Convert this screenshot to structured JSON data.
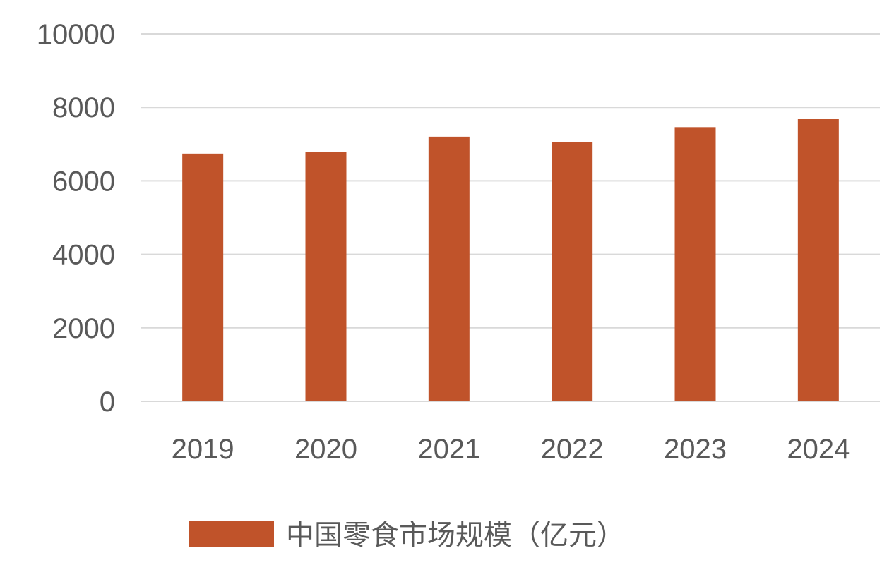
{
  "chart_data": {
    "type": "bar",
    "categories": [
      "2019",
      "2020",
      "2021",
      "2022",
      "2023",
      "2024"
    ],
    "series": [
      {
        "name": "中国零食市场规模（亿元）",
        "values": [
          6740,
          6780,
          7200,
          7060,
          7460,
          7690
        ],
        "color": "#c0532a"
      }
    ],
    "ylim": [
      0,
      10000
    ],
    "yticks": [
      0,
      2000,
      4000,
      6000,
      8000,
      10000
    ],
    "grid": true,
    "legend": "bottom",
    "gridline_color": "#d9d9d9",
    "tick_label_color": "#595959"
  }
}
